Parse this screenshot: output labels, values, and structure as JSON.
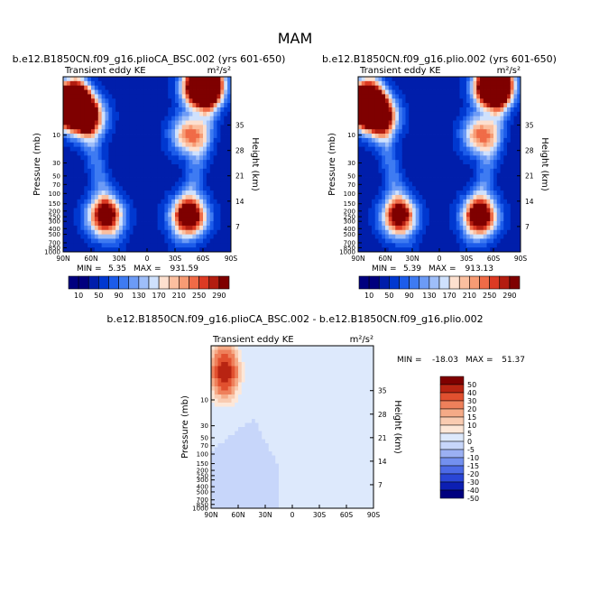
{
  "page_title": "MAM",
  "chart_data": [
    {
      "type": "heatmap",
      "title": "b.e12.B1850CN.f09_g16.plioCA_BSC.002 (yrs 601-650)",
      "subtitle_left": "Transient eddy KE",
      "units": "m²/s²",
      "xlabel": "",
      "ylabel": "Pressure (mb)",
      "ylabel_right": "Height (km)",
      "x_ticks": [
        "90N",
        "60N",
        "30N",
        "0",
        "30S",
        "60S",
        "90S"
      ],
      "y_ticks": [
        "10",
        "30",
        "50",
        "70",
        "100",
        "150",
        "200",
        "250",
        "300",
        "400",
        "500",
        "700",
        "850",
        "1000"
      ],
      "y_ticks_right": [
        "35",
        "28",
        "21",
        "14",
        "7"
      ],
      "min_label": "MIN =",
      "min_value": "5.35",
      "max_label": "MAX =",
      "max_value": "931.59",
      "peaks": [
        {
          "lat": 82,
          "pressure": 3,
          "value": 700
        },
        {
          "lat": 65,
          "pressure": 5,
          "value": 300
        },
        {
          "lat": -60,
          "pressure": 1.5,
          "value": 620
        },
        {
          "lat": -45,
          "pressure": 10,
          "value": 200
        },
        {
          "lat": 45,
          "pressure": 250,
          "value": 300
        },
        {
          "lat": -45,
          "pressure": 250,
          "value": 330
        }
      ],
      "colorbar": {
        "labels": [
          "10",
          "50",
          "90",
          "130",
          "170",
          "210",
          "250",
          "290"
        ],
        "levels": [
          10,
          30,
          50,
          70,
          90,
          110,
          130,
          150,
          170,
          190,
          210,
          230,
          250,
          270,
          290
        ]
      }
    },
    {
      "type": "heatmap",
      "title": "b.e12.B1850CN.f09_g16.plio.002 (yrs 601-650)",
      "subtitle_left": "Transient eddy KE",
      "units": "m²/s²",
      "xlabel": "",
      "ylabel": "Pressure (mb)",
      "ylabel_right": "Height (km)",
      "x_ticks": [
        "90N",
        "60N",
        "30N",
        "0",
        "30S",
        "60S",
        "90S"
      ],
      "y_ticks": [
        "10",
        "30",
        "50",
        "70",
        "100",
        "150",
        "200",
        "250",
        "300",
        "400",
        "500",
        "700",
        "850",
        "1000"
      ],
      "y_ticks_right": [
        "35",
        "28",
        "21",
        "14",
        "7"
      ],
      "min_label": "MIN =",
      "min_value": "5.39",
      "max_label": "MAX =",
      "max_value": "913.13",
      "peaks": [
        {
          "lat": 82,
          "pressure": 3,
          "value": 640
        },
        {
          "lat": 65,
          "pressure": 5,
          "value": 280
        },
        {
          "lat": -60,
          "pressure": 1.5,
          "value": 620
        },
        {
          "lat": -45,
          "pressure": 10,
          "value": 200
        },
        {
          "lat": 45,
          "pressure": 250,
          "value": 290
        },
        {
          "lat": -45,
          "pressure": 250,
          "value": 330
        }
      ],
      "colorbar": {
        "labels": [
          "10",
          "50",
          "90",
          "130",
          "170",
          "210",
          "250",
          "290"
        ],
        "levels": [
          10,
          30,
          50,
          70,
          90,
          110,
          130,
          150,
          170,
          190,
          210,
          230,
          250,
          270,
          290
        ]
      }
    },
    {
      "type": "heatmap",
      "title": "b.e12.B1850CN.f09_g16.plioCA_BSC.002 - b.e12.B1850CN.f09_g16.plio.002",
      "subtitle_left": "Transient eddy KE",
      "units": "m²/s²",
      "xlabel": "",
      "ylabel": "Pressure (mb)",
      "ylabel_right": "Height (km)",
      "x_ticks": [
        "90N",
        "60N",
        "30N",
        "0",
        "30S",
        "60S",
        "90S"
      ],
      "y_ticks": [
        "10",
        "30",
        "50",
        "70",
        "100",
        "150",
        "200",
        "250",
        "300",
        "400",
        "500",
        "700",
        "850",
        "1000"
      ],
      "y_ticks_right": [
        "35",
        "28",
        "21",
        "14",
        "7"
      ],
      "min_label": "MIN =",
      "min_value": "-18.03",
      "max_label": "MAX =",
      "max_value": "51.37",
      "peaks": [
        {
          "lat": 75,
          "pressure": 3,
          "value": 50
        },
        {
          "lat": -80,
          "pressure": 3,
          "value": 4
        },
        {
          "lat": 10,
          "pressure": 15,
          "value": 2
        },
        {
          "lat": 50,
          "pressure": 300,
          "value": -5
        },
        {
          "lat": -20,
          "pressure": 400,
          "value": 2
        }
      ],
      "colorbar": {
        "labels": [
          "50",
          "40",
          "30",
          "20",
          "15",
          "10",
          "5",
          "0",
          "-5",
          "-10",
          "-15",
          "-20",
          "-30",
          "-40",
          "-50"
        ],
        "levels": [
          -50,
          -40,
          -30,
          -20,
          -15,
          -10,
          -5,
          0,
          5,
          10,
          15,
          20,
          30,
          40,
          50
        ]
      }
    }
  ]
}
